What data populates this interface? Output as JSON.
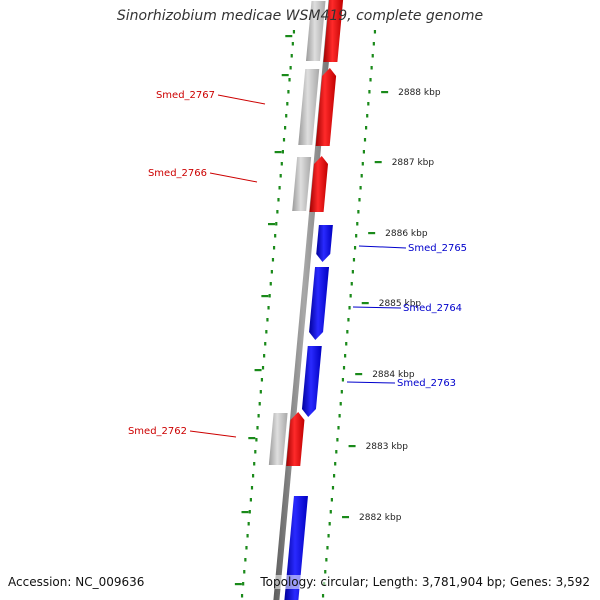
{
  "title": "Sinorhizobium medicae WSM419, complete genome",
  "accession": "Accession: NC_009636",
  "topology": "Topology: circular; Length: 3,781,904 bp; Genes: 3,592",
  "ticks": [
    {
      "label": "2888 kbp"
    },
    {
      "label": "2887 kbp"
    },
    {
      "label": "2886 kbp"
    },
    {
      "label": "2885 kbp"
    },
    {
      "label": "2884 kbp"
    },
    {
      "label": "2883 kbp"
    },
    {
      "label": "2882 kbp"
    }
  ],
  "genes": [
    {
      "label": "Smed_2767",
      "strand": "reverse"
    },
    {
      "label": "Smed_2766",
      "strand": "reverse"
    },
    {
      "label": "Smed_2765",
      "strand": "forward"
    },
    {
      "label": "Smed_2764",
      "strand": "forward"
    },
    {
      "label": "Smed_2763",
      "strand": "forward"
    },
    {
      "label": "Smed_2762",
      "strand": "reverse"
    }
  ],
  "colors": {
    "reverse_strand": "#ff0000",
    "forward_strand": "#0000ff",
    "gene_shadow": "#b8b8b8",
    "backbone": "#808080",
    "tick_marks": "#1a8a1a",
    "reverse_label": "#cc0000",
    "forward_label": "#0000cc"
  }
}
